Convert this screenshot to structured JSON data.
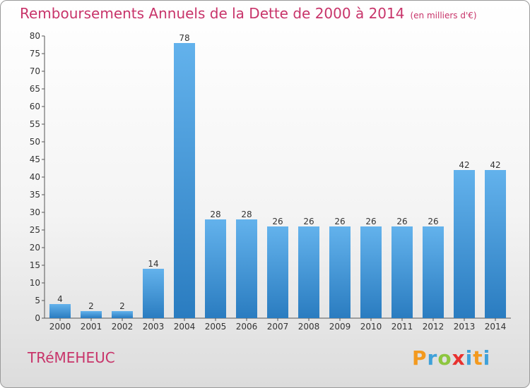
{
  "header": {
    "title": "Remboursements Annuels de la Dette de 2000 à 2014",
    "unit": "(en milliers d'€)"
  },
  "commune": "TRéMEHEUC",
  "logo": {
    "p": "P",
    "r": "r",
    "o": "o",
    "x": "x",
    "i": "i",
    "t": "t",
    "i2": "i"
  },
  "chart_data": {
    "type": "bar",
    "title": "Remboursements Annuels de la Dette de 2000 à 2014",
    "subtitle": "(en milliers d'€)",
    "xlabel": "",
    "ylabel": "",
    "categories": [
      "2000",
      "2001",
      "2002",
      "2003",
      "2004",
      "2005",
      "2006",
      "2007",
      "2008",
      "2009",
      "2010",
      "2011",
      "2012",
      "2013",
      "2014"
    ],
    "values": [
      4,
      2,
      2,
      14,
      78,
      28,
      28,
      26,
      26,
      26,
      26,
      26,
      26,
      42,
      42
    ],
    "data_labels": [
      "4",
      "2",
      "2",
      "14",
      "78",
      "28",
      "28",
      "26",
      "26",
      "26",
      "26",
      "26",
      "26",
      "42",
      "42"
    ],
    "ylim": [
      0,
      80
    ],
    "yticks": [
      0,
      5,
      10,
      15,
      20,
      25,
      30,
      35,
      40,
      45,
      50,
      55,
      60,
      65,
      70,
      75,
      80
    ],
    "grid": false,
    "legend": "none",
    "bar_color": "#3d94d4",
    "bar_color_light": "#63b2ec",
    "accent_color": "#c8346a"
  }
}
